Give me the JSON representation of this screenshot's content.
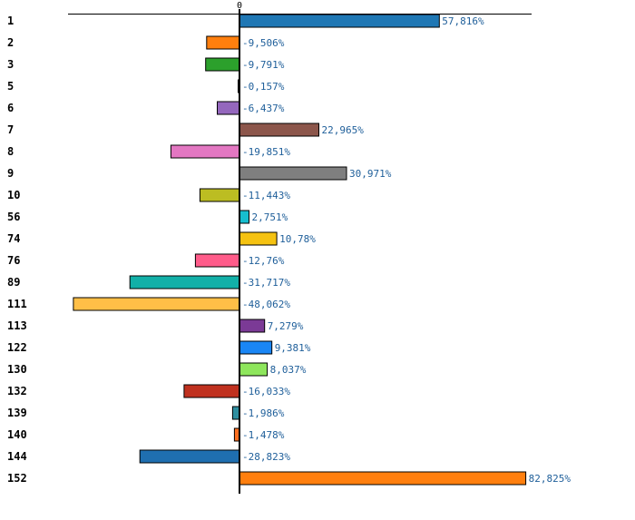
{
  "chart_data": {
    "type": "bar",
    "orientation": "horizontal",
    "title": "",
    "xlabel": "",
    "ylabel": "",
    "value_suffix": "%",
    "decimal_separator": ",",
    "zero_label": "0",
    "grid": false,
    "xlim": [
      -50,
      85
    ],
    "categories": [
      "1",
      "2",
      "3",
      "5",
      "6",
      "7",
      "8",
      "9",
      "10",
      "56",
      "74",
      "76",
      "89",
      "111",
      "113",
      "122",
      "130",
      "132",
      "139",
      "140",
      "144",
      "152"
    ],
    "values": [
      57.816,
      -9.506,
      -9.791,
      -0.157,
      -6.437,
      22.965,
      -19.851,
      30.971,
      -11.443,
      2.751,
      10.78,
      -12.76,
      -31.717,
      -48.062,
      7.279,
      9.381,
      8.037,
      -16.033,
      -1.986,
      -1.478,
      -28.823,
      82.825
    ],
    "value_labels": [
      "57,816%",
      "-9,506%",
      "-9,791%",
      "-0,157%",
      "-6,437%",
      "22,965%",
      "-19,851%",
      "30,971%",
      "-11,443%",
      "2,751%",
      "10,78%",
      "-12,76%",
      "-31,717%",
      "-48,062%",
      "7,279%",
      "9,381%",
      "8,037%",
      "-16,033%",
      "-1,986%",
      "-1,478%",
      "-28,823%",
      "82,825%"
    ],
    "colors": [
      "#1f77b4",
      "#ff7f0e",
      "#2ca02c",
      "#d62728",
      "#9467bd",
      "#8c564b",
      "#e377c2",
      "#7f7f7f",
      "#bcbd22",
      "#17becf",
      "#f5c211",
      "#ff5c8a",
      "#12b0a8",
      "#ffbf47",
      "#7b3a96",
      "#1a86f5",
      "#8ee65c",
      "#c0311f",
      "#2f8fa0",
      "#ff6f20",
      "#1f6fb0",
      "#ff7f0e"
    ]
  }
}
